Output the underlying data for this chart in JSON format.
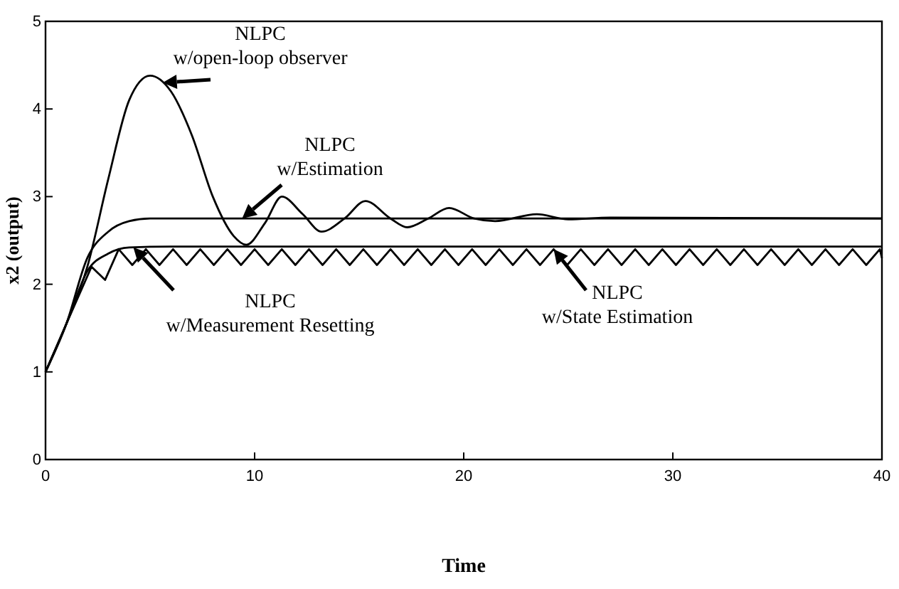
{
  "chart_data": {
    "type": "line",
    "xlabel": "Time",
    "ylabel": "x2 (output)",
    "xlim": [
      0,
      40
    ],
    "ylim": [
      0,
      5
    ],
    "xticks": [
      0,
      10,
      20,
      30,
      40
    ],
    "yticks": [
      0,
      1,
      2,
      3,
      4,
      5
    ],
    "grid": false,
    "legend": false,
    "marker": "none",
    "line_style": "solid",
    "annotations": [
      {
        "text": "NLPC\nw/open-loop observer",
        "x": 5.6,
        "y": 4.3
      },
      {
        "text": "NLPC\nw/Estimation",
        "x": 9.4,
        "y": 2.75
      },
      {
        "text": "NLPC\nw/Measurement Resetting",
        "x": 4.2,
        "y": 2.42
      },
      {
        "text": "NLPC\nw/State Estimation",
        "x": 24.3,
        "y": 2.4
      }
    ],
    "series": [
      {
        "color": "#000000",
        "x": [
          0,
          1,
          2,
          3,
          4,
          5,
          6,
          7,
          8,
          9,
          9.6,
          10.5,
          11.3,
          12.3,
          13.2,
          14.3,
          15.3,
          16.5,
          17.3,
          18.3,
          19.3,
          20.5,
          21.5,
          23.5,
          25,
          27,
          40
        ],
        "values": [
          1,
          1.55,
          2.2,
          3.2,
          4.1,
          4.38,
          4.2,
          3.7,
          3.0,
          2.55,
          2.45,
          2.7,
          3.0,
          2.8,
          2.6,
          2.75,
          2.95,
          2.75,
          2.65,
          2.75,
          2.87,
          2.75,
          2.72,
          2.8,
          2.74,
          2.76,
          2.75
        ]
      },
      {
        "color": "#000000",
        "x": [
          0,
          1,
          2,
          3,
          4,
          5,
          40
        ],
        "values": [
          1,
          1.55,
          2.3,
          2.6,
          2.72,
          2.75,
          2.75
        ]
      },
      {
        "color": "#000000",
        "x": [
          0,
          1,
          2,
          3,
          4,
          6,
          40
        ],
        "values": [
          1,
          1.55,
          2.15,
          2.35,
          2.42,
          2.43,
          2.43
        ]
      },
      {
        "color": "#000000",
        "x": [
          0,
          1,
          2.2,
          2.85,
          3.5,
          4.15,
          4.8,
          5.45,
          6.1,
          6.75,
          7.4,
          8.05,
          8.7,
          9.35,
          10,
          10.65,
          11.3,
          11.95,
          12.6,
          13.25,
          13.9,
          14.55,
          15.2,
          15.85,
          16.5,
          17.15,
          17.8,
          18.45,
          19.1,
          19.75,
          20.4,
          21.05,
          21.7,
          22.35,
          23,
          23.65,
          24.3,
          24.95,
          25.6,
          26.25,
          26.9,
          27.55,
          28.2,
          28.85,
          29.5,
          30.15,
          30.8,
          31.45,
          32.1,
          32.75,
          33.4,
          34.05,
          34.7,
          35.35,
          36,
          36.65,
          37.3,
          37.95,
          38.6,
          39.25,
          39.9,
          40
        ],
        "values": [
          1,
          1.55,
          2.2,
          2.05,
          2.4,
          2.22,
          2.4,
          2.22,
          2.4,
          2.22,
          2.4,
          2.22,
          2.4,
          2.22,
          2.4,
          2.22,
          2.4,
          2.22,
          2.4,
          2.22,
          2.4,
          2.22,
          2.4,
          2.22,
          2.4,
          2.22,
          2.4,
          2.22,
          2.4,
          2.22,
          2.4,
          2.22,
          2.4,
          2.22,
          2.4,
          2.22,
          2.4,
          2.22,
          2.4,
          2.22,
          2.4,
          2.22,
          2.4,
          2.22,
          2.4,
          2.22,
          2.4,
          2.22,
          2.4,
          2.22,
          2.4,
          2.22,
          2.4,
          2.22,
          2.4,
          2.22,
          2.4,
          2.22,
          2.4,
          2.22,
          2.4,
          2.3
        ]
      }
    ]
  }
}
